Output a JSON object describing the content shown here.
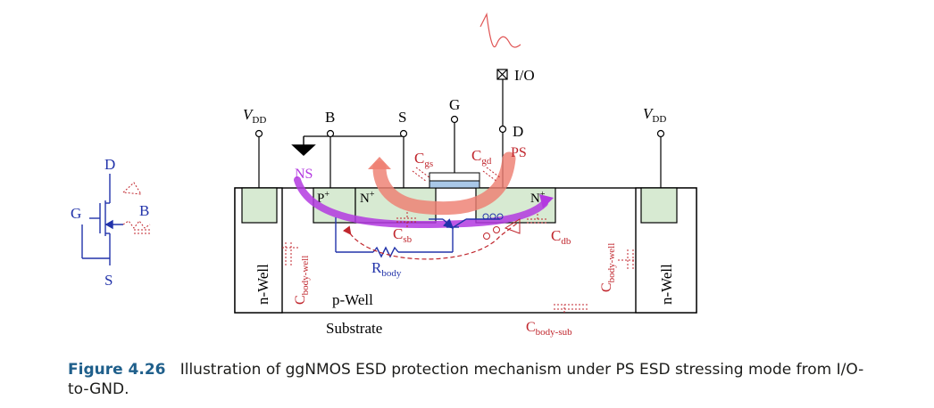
{
  "figure": {
    "label": "Figure 4.26",
    "text": "Illustration of ggNMOS ESD protection mechanism under PS ESD stressing mode from I/O-to-GND."
  },
  "terminals": {
    "vdd_left": "V",
    "vdd_left_sub": "DD",
    "vdd_right": "V",
    "vdd_right_sub": "DD",
    "body": "B",
    "source": "S",
    "gate": "G",
    "drain": "D",
    "io": "I/O"
  },
  "regions": {
    "p_plus": "P",
    "p_plus_sup": "+",
    "n_plus_source": "N",
    "n_plus_source_sup": "+",
    "n_plus_drain": "N",
    "n_plus_drain_sup": "+",
    "n_well_left": "n-Well",
    "n_well_right": "n-Well",
    "p_well": "p-Well",
    "substrate": "Substrate"
  },
  "capacitors": {
    "cgs": "C",
    "cgs_sub": "gs",
    "cgd": "C",
    "cgd_sub": "gd",
    "csb": "C",
    "csb_sub": "sb",
    "cdb": "C",
    "cdb_sub": "db",
    "cbw_left": "C",
    "cbw_left_sub": "body-well",
    "cbw_right": "C",
    "cbw_right_sub": "body-well",
    "cbs": "C",
    "cbs_sub": "body-sub"
  },
  "resistor": {
    "label": "R",
    "sub": "body"
  },
  "paths": {
    "ns": "NS",
    "ps": "PS"
  },
  "schematic": {
    "drain": "D",
    "gate": "G",
    "body": "B",
    "source": "S"
  },
  "colors": {
    "capacitor_red": "#c0262d",
    "resistor_blue": "#2233aa",
    "ns_purple": "#b339e0",
    "ps_salmon": "#ee7f72",
    "region_green": "#d7ead2",
    "gate_blue": "#a9c8e8",
    "caption_blue": "#1f5f8b"
  }
}
